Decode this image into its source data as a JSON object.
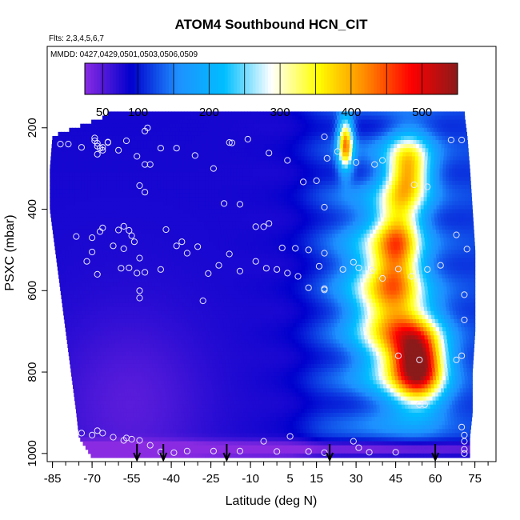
{
  "chart_data": {
    "type": "heatmap",
    "title": "ATOM4 Southbound HCN_CIT",
    "subtitle_flights": "Flts: 2,3,4,5,6,7",
    "subtitle_dates": "MMDD: 0427,0429,0501,0503,0506,0509",
    "xlabel": "Latitude (deg N)",
    "ylabel": "PSXC (mbar)",
    "xlim": [
      -87,
      83
    ],
    "ylim": [
      1020,
      0
    ],
    "xticks": [
      -85,
      -70,
      -55,
      -40,
      -25,
      -10,
      5,
      15,
      30,
      45,
      60,
      75
    ],
    "yticks": [
      200,
      400,
      600,
      800,
      1000
    ],
    "colorbar": {
      "range": [
        25,
        550
      ],
      "ticks": [
        50,
        100,
        200,
        300,
        400,
        500
      ],
      "colors": [
        "#8a2be2",
        "#0000cd",
        "#1e90ff",
        "#00bfff",
        "#ffffff",
        "#ffff00",
        "#ff8c00",
        "#ff0000",
        "#8b1a1a"
      ]
    },
    "coverage": [
      {
        "p": 170,
        "x0": -64,
        "x1": 71
      },
      {
        "p": 220,
        "x0": -85,
        "x1": 72
      },
      {
        "p": 300,
        "x0": -86,
        "x1": 73
      },
      {
        "p": 400,
        "x0": -86,
        "x1": 74
      },
      {
        "p": 500,
        "x0": -84,
        "x1": 75
      },
      {
        "p": 600,
        "x0": -82,
        "x1": 75
      },
      {
        "p": 700,
        "x0": -80,
        "x1": 75
      },
      {
        "p": 800,
        "x0": -78,
        "x1": 74
      },
      {
        "p": 900,
        "x0": -76,
        "x1": 74
      },
      {
        "p": 960,
        "x0": -75,
        "x1": 73
      },
      {
        "p": 1010,
        "x0": -70,
        "x1": 73
      }
    ],
    "field_features": [
      {
        "name": "background",
        "value": 80
      },
      {
        "name": "southern-boundary-layer",
        "lat": -55,
        "p": 870,
        "value": 55
      },
      {
        "name": "northern-plume",
        "lat": 54,
        "p": 780,
        "value": 470
      },
      {
        "name": "northern-upper-plume",
        "lat": 50,
        "p": 290,
        "value": 360
      },
      {
        "name": "tropical-upper-feature",
        "lat": 26,
        "p": 240,
        "value": 390
      },
      {
        "name": "near-surface-low",
        "p": 990,
        "value": 35
      }
    ],
    "arrows_lat": [
      -53,
      -43,
      -19,
      20,
      60
    ],
    "points": [
      [
        -82,
        240
      ],
      [
        -79,
        240
      ],
      [
        -74,
        248
      ],
      [
        -69,
        225
      ],
      [
        -69,
        232
      ],
      [
        -68,
        245
      ],
      [
        -67,
        250
      ],
      [
        -66,
        255
      ],
      [
        -68,
        265
      ],
      [
        -64,
        236
      ],
      [
        -60,
        255
      ],
      [
        -57,
        232
      ],
      [
        -50,
        208
      ],
      [
        -49,
        200
      ],
      [
        -53,
        270
      ],
      [
        -50,
        290
      ],
      [
        -48,
        290
      ],
      [
        -44,
        250
      ],
      [
        -38,
        250
      ],
      [
        -31,
        268
      ],
      [
        -24,
        300
      ],
      [
        -18,
        236
      ],
      [
        -17,
        237
      ],
      [
        -11,
        228
      ],
      [
        -3,
        262
      ],
      [
        4,
        280
      ],
      [
        10,
        333
      ],
      [
        15,
        330
      ],
      [
        18,
        222
      ],
      [
        19,
        275
      ],
      [
        23,
        258
      ],
      [
        30,
        285
      ],
      [
        37,
        290
      ],
      [
        40,
        280
      ],
      [
        52,
        340
      ],
      [
        57,
        345
      ],
      [
        66,
        230
      ],
      [
        70,
        230
      ],
      [
        -52,
        342
      ],
      [
        -50,
        358
      ],
      [
        -20,
        386
      ],
      [
        -14,
        388
      ],
      [
        -8,
        443
      ],
      [
        -5,
        443
      ],
      [
        -3,
        435
      ],
      [
        -76,
        467
      ],
      [
        -72,
        528
      ],
      [
        -68,
        560
      ],
      [
        -62,
        490
      ],
      [
        -58,
        497
      ],
      [
        -60,
        451
      ],
      [
        -58,
        442
      ],
      [
        -56,
        452
      ],
      [
        -55,
        465
      ],
      [
        -54,
        480
      ],
      [
        -52,
        520
      ],
      [
        -59,
        545
      ],
      [
        -56,
        544
      ],
      [
        -53,
        557
      ],
      [
        -50,
        555
      ],
      [
        -44,
        548
      ],
      [
        -42,
        450
      ],
      [
        -38,
        490
      ],
      [
        -36,
        480
      ],
      [
        -34,
        508
      ],
      [
        -30,
        492
      ],
      [
        -26,
        558
      ],
      [
        -22,
        538
      ],
      [
        -18,
        510
      ],
      [
        -8,
        528
      ],
      [
        0,
        548
      ],
      [
        2,
        495
      ],
      [
        7,
        496
      ],
      [
        12,
        500
      ],
      [
        16,
        540
      ],
      [
        18,
        508
      ],
      [
        18,
        395
      ],
      [
        25,
        548
      ],
      [
        29,
        530
      ],
      [
        31,
        544
      ],
      [
        36,
        550
      ],
      [
        40,
        570
      ],
      [
        46,
        547
      ],
      [
        51,
        565
      ],
      [
        57,
        548
      ],
      [
        62,
        538
      ],
      [
        68,
        463
      ],
      [
        72,
        498
      ],
      [
        -52,
        600
      ],
      [
        -52,
        618
      ],
      [
        -28,
        625
      ],
      [
        -14,
        552
      ],
      [
        -4,
        545
      ],
      [
        4,
        557
      ],
      [
        8,
        565
      ],
      [
        12,
        593
      ],
      [
        18,
        598
      ],
      [
        18,
        595
      ],
      [
        71,
        610
      ],
      [
        71,
        672
      ],
      [
        70,
        760
      ],
      [
        68,
        770
      ],
      [
        46,
        760
      ],
      [
        54,
        770
      ],
      [
        54,
        880
      ],
      [
        56,
        880
      ],
      [
        -74,
        950
      ],
      [
        -70,
        955
      ],
      [
        -68,
        944
      ],
      [
        -66,
        950
      ],
      [
        -62,
        960
      ],
      [
        -58,
        968
      ],
      [
        -57,
        962
      ],
      [
        -55,
        965
      ],
      [
        -52,
        968
      ],
      [
        -48,
        980
      ],
      [
        -44,
        996
      ],
      [
        -39,
        998
      ],
      [
        -34,
        994
      ],
      [
        -24,
        994
      ],
      [
        -14,
        994
      ],
      [
        -5,
        970
      ],
      [
        0,
        995
      ],
      [
        5,
        958
      ],
      [
        12,
        995
      ],
      [
        18,
        998
      ],
      [
        29,
        970
      ],
      [
        31,
        986
      ],
      [
        35,
        997
      ],
      [
        45,
        997
      ],
      [
        70,
        935
      ],
      [
        71,
        955
      ],
      [
        71,
        970
      ],
      [
        71,
        990
      ],
      [
        71,
        1000
      ],
      [
        -64,
        235
      ],
      [
        -68,
        238
      ],
      [
        -66,
        248
      ],
      [
        -70,
        470
      ],
      [
        -67,
        455
      ],
      [
        -66,
        446
      ],
      [
        -70,
        505
      ]
    ]
  }
}
